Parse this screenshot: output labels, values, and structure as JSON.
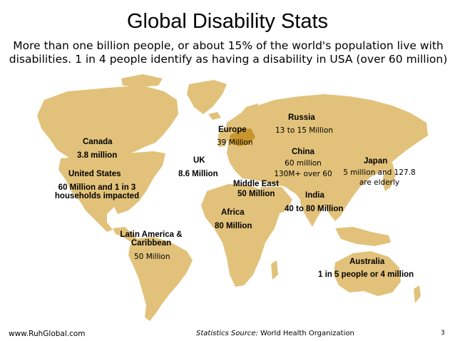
{
  "title": "Global Disability Stats",
  "subtitle_line1": "More than one billion people, or about 15% of the world's population live with",
  "subtitle_line2": "disabilities. 1 in 4 people identify as having a disability in USA  (over 60 million)",
  "colors": {
    "land": "#e2c27a",
    "europe_highlight": "#c8962e"
  },
  "regions": {
    "canada": {
      "name": "Canada",
      "value": "3.8 million"
    },
    "usa": {
      "name": "United States",
      "value_line1": "60 Million and 1 in 3",
      "value_line2": "households impacted"
    },
    "latam": {
      "name_line1": "Latin America &",
      "name_line2": "Caribbean",
      "value": "50 Million"
    },
    "uk": {
      "name": "UK",
      "value": "8.6 Million"
    },
    "europe": {
      "name": "Europe",
      "value": "39 Million"
    },
    "russia": {
      "name": "Russia",
      "value": "13 to 15 Million"
    },
    "china": {
      "name": "China",
      "value_line1": "60 million",
      "value_line2": "130M+ over 60"
    },
    "japan": {
      "name": "Japan",
      "value_line1": "5 million and 127.8",
      "value_line2": "are elderly"
    },
    "middle_east": {
      "name": "Middle East",
      "value": "50 Million"
    },
    "india": {
      "name": "India",
      "value": "40 to 80 Million"
    },
    "africa": {
      "name": "Africa",
      "value": "80 Million"
    },
    "australia": {
      "name": "Australia",
      "value": "1 in 5 people or 4 million"
    }
  },
  "footer": {
    "website": "www.RuhGlobal.com",
    "source_label": "Statistics Source:",
    "source_value": "World Health Organization",
    "page_number": "3"
  }
}
